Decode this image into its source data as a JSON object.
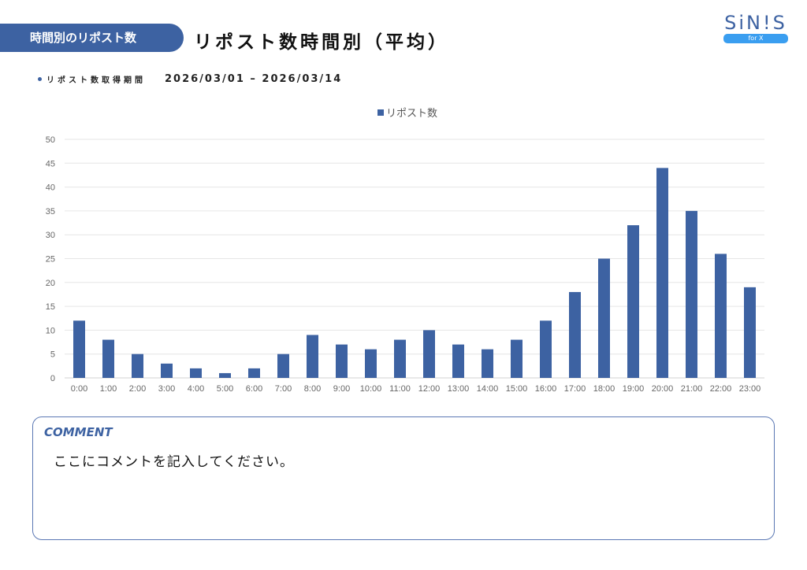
{
  "header": {
    "section_label": "時間別のリポスト数",
    "title": "リポスト数時間別（平均）"
  },
  "logo": {
    "text": "SiN!S",
    "badge": "for X"
  },
  "period": {
    "label": "リポスト数取得期間",
    "range": "2026/03/01 – 2026/03/14"
  },
  "colors": {
    "accent": "#3d62a2",
    "bar": "#3d62a2"
  },
  "chart_data": {
    "type": "bar",
    "title": "",
    "legend": [
      "リポスト数"
    ],
    "legend_position": "top",
    "categories": [
      "0:00",
      "1:00",
      "2:00",
      "3:00",
      "4:00",
      "5:00",
      "6:00",
      "7:00",
      "8:00",
      "9:00",
      "10:00",
      "11:00",
      "12:00",
      "13:00",
      "14:00",
      "15:00",
      "16:00",
      "17:00",
      "18:00",
      "19:00",
      "20:00",
      "21:00",
      "22:00",
      "23:00"
    ],
    "series": [
      {
        "name": "リポスト数",
        "values": [
          12,
          8,
          5,
          3,
          2,
          1,
          2,
          5,
          9,
          7,
          6,
          8,
          10,
          7,
          6,
          8,
          12,
          18,
          25,
          32,
          44,
          35,
          26,
          19
        ]
      }
    ],
    "ylim": [
      0,
      50
    ],
    "yticks": [
      0,
      5,
      10,
      15,
      20,
      25,
      30,
      35,
      40,
      45,
      50
    ],
    "grid": true,
    "xlabel": "",
    "ylabel": ""
  },
  "comment": {
    "heading": "COMMENT",
    "body": "ここにコメントを記入してください。"
  }
}
